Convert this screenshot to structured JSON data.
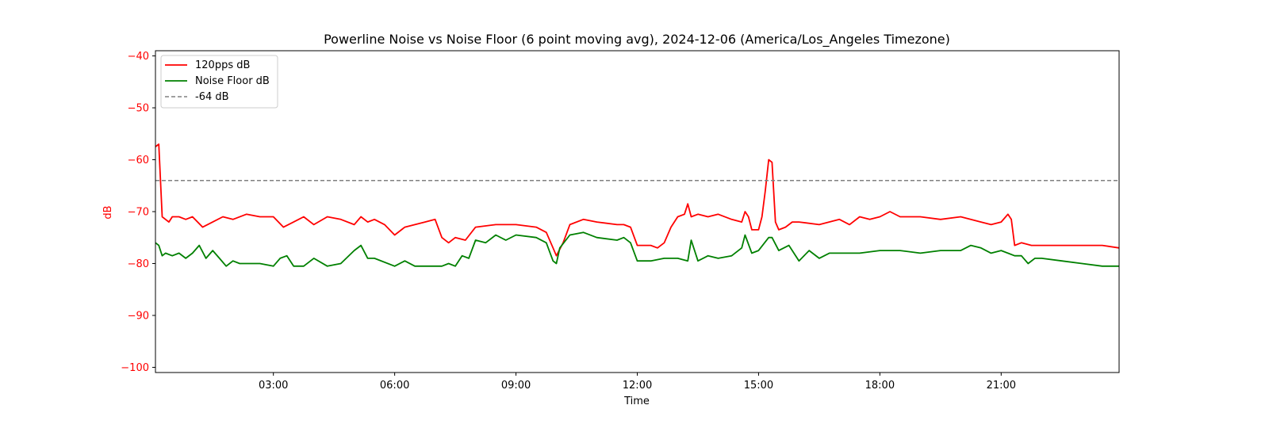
{
  "chart_data": {
    "type": "line",
    "title": "Powerline Noise vs Noise Floor (6 point moving avg), 2024-12-06 (America/Los_Angeles Timezone)",
    "xlabel": "Time",
    "ylabel": "dB",
    "ylabel_color": "#ff0000",
    "ytick_color": "#ff0000",
    "xlim": [
      "00:05",
      "23:55"
    ],
    "ylim": [
      -101,
      -39
    ],
    "xticks": [
      "03:00",
      "06:00",
      "09:00",
      "12:00",
      "15:00",
      "18:00",
      "21:00"
    ],
    "yticks": [
      -40,
      -50,
      -60,
      -70,
      -80,
      -90,
      -100
    ],
    "ytick_labels": [
      "−40",
      "−50",
      "−60",
      "−70",
      "−80",
      "−90",
      "−100"
    ],
    "grid": false,
    "legend_position": "upper-left",
    "series": [
      {
        "name": "120pps dB",
        "color": "#ff0000",
        "style": "solid",
        "x": [
          "00:05",
          "00:10",
          "00:15",
          "00:20",
          "00:25",
          "00:30",
          "00:40",
          "00:50",
          "01:00",
          "01:15",
          "01:30",
          "01:45",
          "02:00",
          "02:20",
          "02:40",
          "03:00",
          "03:15",
          "03:30",
          "03:45",
          "04:00",
          "04:20",
          "04:40",
          "05:00",
          "05:10",
          "05:20",
          "05:30",
          "05:45",
          "06:00",
          "06:15",
          "06:30",
          "06:45",
          "07:00",
          "07:10",
          "07:20",
          "07:30",
          "07:45",
          "08:00",
          "08:30",
          "09:00",
          "09:30",
          "09:45",
          "09:55",
          "10:00",
          "10:10",
          "10:20",
          "10:40",
          "11:00",
          "11:30",
          "11:40",
          "11:50",
          "12:00",
          "12:20",
          "12:30",
          "12:40",
          "12:50",
          "13:00",
          "13:10",
          "13:15",
          "13:20",
          "13:30",
          "13:45",
          "14:00",
          "14:20",
          "14:35",
          "14:40",
          "14:45",
          "14:50",
          "15:00",
          "15:05",
          "15:10",
          "15:15",
          "15:20",
          "15:25",
          "15:30",
          "15:40",
          "15:50",
          "16:00",
          "16:30",
          "17:00",
          "17:15",
          "17:30",
          "17:45",
          "18:00",
          "18:15",
          "18:30",
          "19:00",
          "19:30",
          "20:00",
          "20:30",
          "20:45",
          "21:00",
          "21:10",
          "21:15",
          "21:20",
          "21:30",
          "21:45",
          "22:00",
          "22:30",
          "23:00",
          "23:30",
          "23:55"
        ],
        "y": [
          -57.5,
          -57.0,
          -71.0,
          -71.5,
          -72.0,
          -71.0,
          -71.0,
          -71.5,
          -71.0,
          -73.0,
          -72.0,
          -71.0,
          -71.5,
          -70.5,
          -71.0,
          -71.0,
          -73.0,
          -72.0,
          -71.0,
          -72.5,
          -71.0,
          -71.5,
          -72.5,
          -71.0,
          -72.0,
          -71.5,
          -72.5,
          -74.5,
          -73.0,
          -72.5,
          -72.0,
          -71.5,
          -75.0,
          -76.0,
          -75.0,
          -75.5,
          -73.0,
          -72.5,
          -72.5,
          -73.0,
          -74.0,
          -77.0,
          -78.5,
          -76.0,
          -72.5,
          -71.5,
          -72.0,
          -72.5,
          -72.5,
          -73.0,
          -76.5,
          -76.5,
          -77.0,
          -76.0,
          -73.0,
          -71.0,
          -70.5,
          -68.5,
          -71.0,
          -70.5,
          -71.0,
          -70.5,
          -71.5,
          -72.0,
          -70.0,
          -71.0,
          -73.5,
          -73.5,
          -71.0,
          -66.0,
          -60.0,
          -60.5,
          -72.0,
          -73.5,
          -73.0,
          -72.0,
          -72.0,
          -72.5,
          -71.5,
          -72.5,
          -71.0,
          -71.5,
          -71.0,
          -70.0,
          -71.0,
          -71.0,
          -71.5,
          -71.0,
          -72.0,
          -72.5,
          -72.0,
          -70.5,
          -71.5,
          -76.5,
          -76.0,
          -76.5,
          -76.5,
          -76.5,
          -76.5,
          -76.5,
          -77.0
        ]
      },
      {
        "name": "Noise Floor dB",
        "color": "#008000",
        "style": "solid",
        "x": [
          "00:05",
          "00:10",
          "00:15",
          "00:20",
          "00:30",
          "00:40",
          "00:50",
          "01:00",
          "01:10",
          "01:20",
          "01:30",
          "01:40",
          "01:50",
          "02:00",
          "02:10",
          "02:20",
          "02:40",
          "03:00",
          "03:10",
          "03:20",
          "03:30",
          "03:45",
          "04:00",
          "04:20",
          "04:40",
          "05:00",
          "05:10",
          "05:20",
          "05:30",
          "06:00",
          "06:15",
          "06:30",
          "06:45",
          "07:00",
          "07:10",
          "07:20",
          "07:30",
          "07:40",
          "07:50",
          "08:00",
          "08:15",
          "08:30",
          "08:45",
          "09:00",
          "09:30",
          "09:45",
          "09:55",
          "10:00",
          "10:05",
          "10:20",
          "10:40",
          "11:00",
          "11:30",
          "11:40",
          "11:50",
          "12:00",
          "12:20",
          "12:40",
          "13:00",
          "13:15",
          "13:20",
          "13:30",
          "13:45",
          "14:00",
          "14:20",
          "14:35",
          "14:40",
          "14:50",
          "15:00",
          "15:15",
          "15:20",
          "15:30",
          "15:45",
          "16:00",
          "16:15",
          "16:30",
          "16:45",
          "17:00",
          "17:15",
          "17:30",
          "18:00",
          "18:30",
          "19:00",
          "19:30",
          "20:00",
          "20:15",
          "20:30",
          "20:45",
          "21:00",
          "21:10",
          "21:20",
          "21:30",
          "21:40",
          "21:50",
          "22:00",
          "22:30",
          "23:00",
          "23:30",
          "23:55"
        ],
        "y": [
          -76.0,
          -76.5,
          -78.5,
          -78.0,
          -78.5,
          -78.0,
          -79.0,
          -78.0,
          -76.5,
          -79.0,
          -77.5,
          -79.0,
          -80.5,
          -79.5,
          -80.0,
          -80.0,
          -80.0,
          -80.5,
          -79.0,
          -78.5,
          -80.5,
          -80.5,
          -79.0,
          -80.5,
          -80.0,
          -77.5,
          -76.5,
          -79.0,
          -79.0,
          -80.5,
          -79.5,
          -80.5,
          -80.5,
          -80.5,
          -80.5,
          -80.0,
          -80.5,
          -78.5,
          -79.0,
          -75.5,
          -76.0,
          -74.5,
          -75.5,
          -74.5,
          -75.0,
          -76.0,
          -79.5,
          -80.0,
          -77.0,
          -74.5,
          -74.0,
          -75.0,
          -75.5,
          -75.0,
          -76.0,
          -79.5,
          -79.5,
          -79.0,
          -79.0,
          -79.5,
          -75.5,
          -79.5,
          -78.5,
          -79.0,
          -78.5,
          -77.0,
          -74.5,
          -78.0,
          -77.5,
          -75.0,
          -75.0,
          -77.5,
          -76.5,
          -79.5,
          -77.5,
          -79.0,
          -78.0,
          -78.0,
          -78.0,
          -78.0,
          -77.5,
          -77.5,
          -78.0,
          -77.5,
          -77.5,
          -76.5,
          -77.0,
          -78.0,
          -77.5,
          -78.0,
          -78.5,
          -78.5,
          -80.0,
          -79.0,
          -79.0,
          -79.5,
          -80.0,
          -80.5,
          -80.5
        ]
      },
      {
        "name": "-64 dB",
        "color": "#808080",
        "style": "dashed",
        "y_constant": -64
      }
    ]
  }
}
